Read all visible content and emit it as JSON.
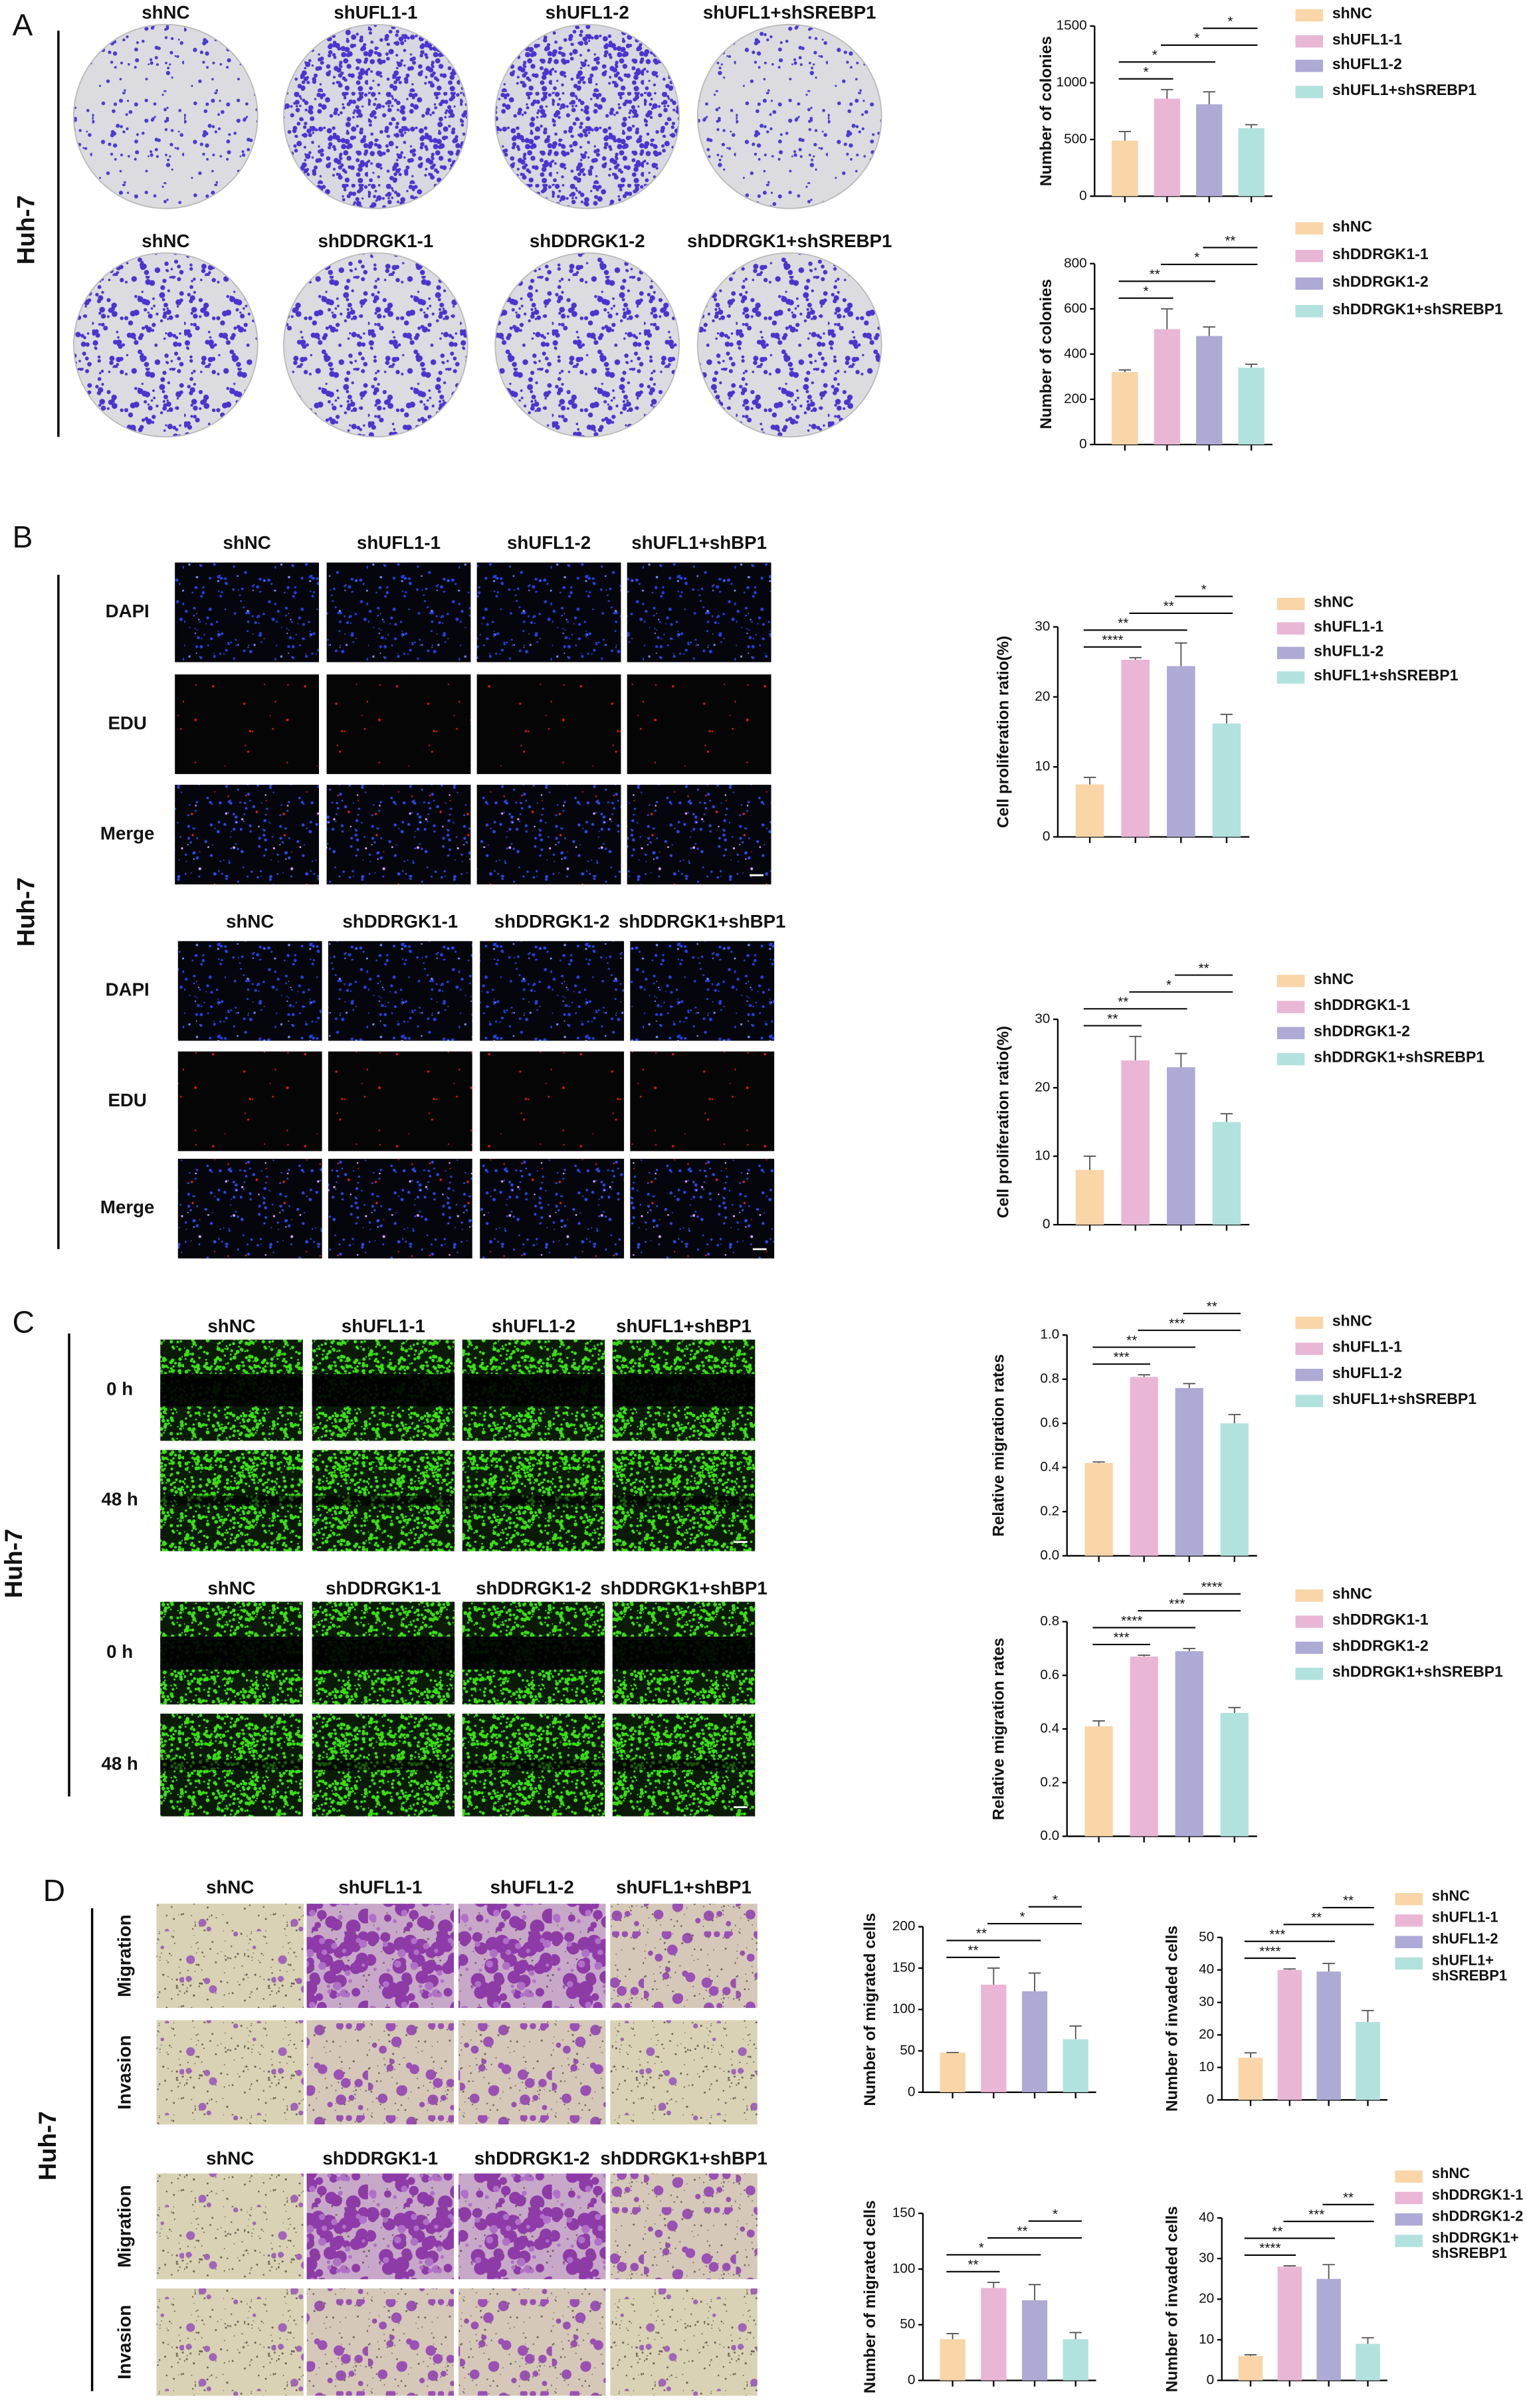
{
  "figure": {
    "panels": [
      {
        "letter": "A",
        "cell_line": "Huh-7",
        "groups": [
          {
            "columns": [
              "shNC",
              "shUFL1-1",
              "shUFL1-2",
              "shUFL1+shSREBP1"
            ]
          },
          {
            "columns": [
              "shNC",
              "shDDRGK1-1",
              "shDDRGK1-2",
              "shDDRGK1+shSREBP1"
            ]
          }
        ]
      },
      {
        "letter": "B",
        "cell_line": "Huh-7",
        "groups": [
          {
            "columns": [
              "shNC",
              "shUFL1-1",
              "shUFL1-2",
              "shUFL1+shBP1"
            ],
            "rows": [
              "DAPI",
              "EDU",
              "Merge"
            ]
          },
          {
            "columns": [
              "shNC",
              "shDDRGK1-1",
              "shDDRGK1-2",
              "shDDRGK1+shBP1"
            ],
            "rows": [
              "DAPI",
              "EDU",
              "Merge"
            ]
          }
        ]
      },
      {
        "letter": "C",
        "cell_line": "Huh-7",
        "groups": [
          {
            "columns": [
              "shNC",
              "shUFL1-1",
              "shUFL1-2",
              "shUFL1+shBP1"
            ],
            "rows": [
              "0 h",
              "48 h"
            ]
          },
          {
            "columns": [
              "shNC",
              "shDDRGK1-1",
              "shDDRGK1-2",
              "shDDRGK1+shBP1"
            ],
            "rows": [
              "0 h",
              "48 h"
            ]
          }
        ]
      },
      {
        "letter": "D",
        "cell_line": "Huh-7",
        "groups": [
          {
            "columns": [
              "shNC",
              "shUFL1-1",
              "shUFL1-2",
              "shUFL1+shBP1"
            ],
            "rows": [
              "Migration",
              "Invasion"
            ]
          },
          {
            "columns": [
              "shNC",
              "shDDRGK1-1",
              "shDDRGK1-2",
              "shDDRGK1+shBP1"
            ],
            "rows": [
              "Migration",
              "Invasion"
            ]
          }
        ]
      }
    ]
  },
  "chart_data": [
    {
      "type": "bar",
      "y_label": "Number of colonies",
      "categories": [
        "shNC",
        "shUFL1-1",
        "shUFL1-2",
        "shUFL1+shSREBP1"
      ],
      "colors": [
        "#f9d5a7",
        "#eab6d5",
        "#aeaad6",
        "#b2e2dd"
      ],
      "values": [
        490,
        860,
        810,
        600
      ],
      "errors": [
        80,
        80,
        110,
        30
      ],
      "ylim": [
        0,
        1500
      ],
      "yticks": [
        0,
        500,
        1000,
        1500
      ],
      "significance": [
        "*",
        "*",
        "*",
        "*"
      ]
    },
    {
      "type": "bar",
      "y_label": "Number of colonies",
      "categories": [
        "shNC",
        "shDDRGK1-1",
        "shDDRGK1-2",
        "shDDRGK1+shSREBP1"
      ],
      "colors": [
        "#f9d5a7",
        "#eab6d5",
        "#aeaad6",
        "#b2e2dd"
      ],
      "values": [
        320,
        510,
        480,
        340
      ],
      "errors": [
        10,
        90,
        40,
        15
      ],
      "ylim": [
        0,
        800
      ],
      "yticks": [
        0,
        200,
        400,
        600,
        800
      ],
      "significance": [
        "*",
        "**",
        "*",
        "**"
      ]
    },
    {
      "type": "bar",
      "y_label": "Cell proliferation ratio(%)",
      "categories": [
        "shNC",
        "shUFL1-1",
        "shUFL1-2",
        "shUFL1+shSREBP1"
      ],
      "colors": [
        "#f9d5a7",
        "#eab6d5",
        "#aeaad6",
        "#b2e2dd"
      ],
      "values": [
        7.5,
        25.3,
        24.4,
        16.2
      ],
      "errors": [
        1,
        0.3,
        3.3,
        1.3
      ],
      "ylim": [
        0,
        30
      ],
      "yticks": [
        0,
        10,
        20,
        30
      ],
      "significance": [
        "****",
        "**",
        "**",
        "*"
      ]
    },
    {
      "type": "bar",
      "y_label": "Cell proliferation ratio(%)",
      "categories": [
        "shNC",
        "shDDRGK1-1",
        "shDDRGK1-2",
        "shDDRGK1+shSREBP1"
      ],
      "colors": [
        "#f9d5a7",
        "#eab6d5",
        "#aeaad6",
        "#b2e2dd"
      ],
      "values": [
        8,
        24,
        23,
        15
      ],
      "errors": [
        2,
        3.5,
        2,
        1.2
      ],
      "ylim": [
        0,
        30
      ],
      "yticks": [
        0,
        10,
        20,
        30
      ],
      "significance": [
        "**",
        "**",
        "*",
        "**"
      ]
    },
    {
      "type": "bar",
      "y_label": "Relative migration rates",
      "categories": [
        "shNC",
        "shUFL1-1",
        "shUFL1-2",
        "shUFL1+shSREBP1"
      ],
      "colors": [
        "#f9d5a7",
        "#eab6d5",
        "#aeaad6",
        "#b2e2dd"
      ],
      "values": [
        0.42,
        0.81,
        0.76,
        0.6
      ],
      "errors": [
        0.005,
        0.01,
        0.02,
        0.04
      ],
      "ylim": [
        0,
        1
      ],
      "yticks": [
        {
          "value": 0,
          "label": "0.0"
        },
        0.2,
        0.4,
        0.6,
        0.8,
        {
          "value": 1,
          "label": "1.0"
        }
      ],
      "significance": [
        "***",
        "**",
        "***",
        "**"
      ]
    },
    {
      "type": "bar",
      "y_label": "Relative migration rates",
      "categories": [
        "shNC",
        "shDDRGK1-1",
        "shDDRGK1-2",
        "shDDRGK1+shSREBP1"
      ],
      "colors": [
        "#f9d5a7",
        "#eab6d5",
        "#aeaad6",
        "#b2e2dd"
      ],
      "values": [
        0.41,
        0.67,
        0.69,
        0.46
      ],
      "errors": [
        0.02,
        0.005,
        0.01,
        0.02
      ],
      "ylim": [
        0,
        0.8
      ],
      "yticks": [
        {
          "value": 0,
          "label": "0.0"
        },
        0.2,
        0.4,
        0.6,
        0.8
      ],
      "significance": [
        "***",
        "****",
        "***",
        "****"
      ]
    },
    {
      "type": "bar",
      "y_label": "Number of migrated cells",
      "colors": [
        "#f9d5a7",
        "#eab6d5",
        "#aeaad6",
        "#b2e2dd"
      ],
      "values": [
        48,
        130,
        122,
        64
      ],
      "errors": [
        0,
        20,
        22,
        16
      ],
      "ylim": [
        0,
        200
      ],
      "yticks": [
        0,
        50,
        100,
        150,
        200
      ],
      "significance": [
        "**",
        "**",
        "*",
        "*"
      ]
    },
    {
      "type": "bar",
      "y_label": "Number of invaded cells",
      "categories": [
        "shNC",
        "shUFL1-1",
        "shUFL1-2",
        "shUFL1+\nshSREBP1"
      ],
      "colors": [
        "#f9d5a7",
        "#eab6d5",
        "#aeaad6",
        "#b2e2dd"
      ],
      "values": [
        13,
        40,
        39.5,
        24
      ],
      "errors": [
        1.5,
        0.3,
        2.5,
        3.5
      ],
      "ylim": [
        0,
        50
      ],
      "yticks": [
        0,
        10,
        20,
        30,
        40,
        50
      ],
      "significance": [
        "****",
        "***",
        "**",
        "**"
      ]
    },
    {
      "type": "bar",
      "y_label": "Number of migrated cells",
      "colors": [
        "#f9d5a7",
        "#eab6d5",
        "#aeaad6",
        "#b2e2dd"
      ],
      "values": [
        37,
        83,
        72,
        37
      ],
      "errors": [
        5,
        5,
        14,
        6
      ],
      "ylim": [
        0,
        150
      ],
      "yticks": [
        0,
        50,
        100,
        150
      ],
      "significance": [
        "**",
        "*",
        "**",
        "*"
      ]
    },
    {
      "type": "bar",
      "y_label": "Number of invaded cells",
      "categories": [
        "shNC",
        "shDDRGK1-1",
        "shDDRGK1-2",
        "shDDRGK1+\nshSREBP1"
      ],
      "colors": [
        "#f9d5a7",
        "#eab6d5",
        "#aeaad6",
        "#b2e2dd"
      ],
      "values": [
        6,
        28,
        25,
        9
      ],
      "errors": [
        0.3,
        0.2,
        3.5,
        1.5
      ],
      "ylim": [
        0,
        40
      ],
      "yticks": [
        0,
        10,
        20,
        30,
        40
      ],
      "significance": [
        "****",
        "**",
        "***",
        "**"
      ]
    }
  ]
}
